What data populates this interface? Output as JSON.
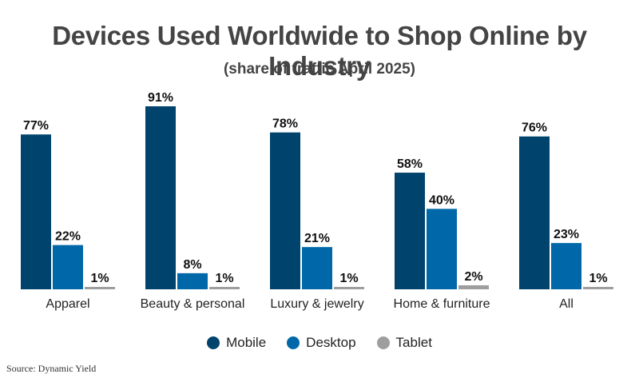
{
  "chart_data": {
    "type": "bar",
    "title": "Devices Used Worldwide to Shop Online by Industry",
    "subtitle": "(share of traffic April 2025)",
    "categories": [
      "Apparel",
      "Beauty & personal",
      "Luxury & jewelry",
      "Home & furniture",
      "All"
    ],
    "series": [
      {
        "name": "Mobile",
        "color": "#00446e",
        "values": [
          77,
          91,
          78,
          58,
          76
        ],
        "labels": [
          "77%",
          "91%",
          "78%",
          "58%",
          "76%"
        ]
      },
      {
        "name": "Desktop",
        "color": "#0068a8",
        "values": [
          22,
          8,
          21,
          40,
          23
        ],
        "labels": [
          "22%",
          "8%",
          "21%",
          "40%",
          "23%"
        ]
      },
      {
        "name": "Tablet",
        "color": "#9e9e9e",
        "values": [
          1,
          1,
          1,
          2,
          1
        ],
        "labels": [
          "1%",
          "1%",
          "1%",
          "2%",
          "1%"
        ]
      }
    ],
    "ylim": [
      0,
      100
    ],
    "grid": false,
    "legend_position": "bottom-center"
  },
  "source": "Source: Dynamic Yield"
}
